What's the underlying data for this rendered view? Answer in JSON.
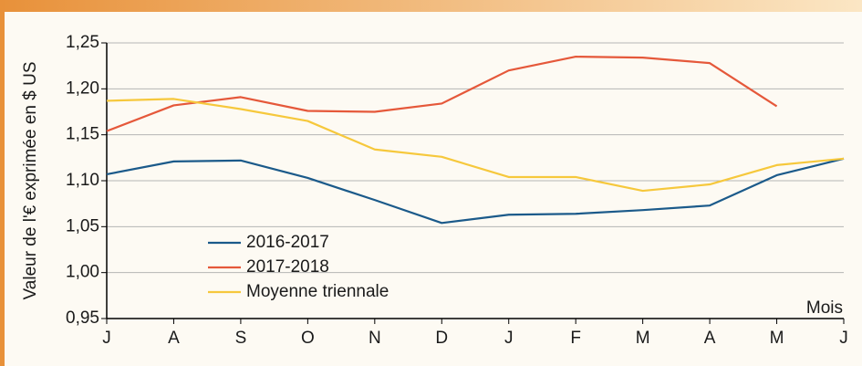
{
  "chart_data": {
    "type": "line",
    "y_label": "Valeur de l'€ exprimée en $ US",
    "x_label": "Mois",
    "categories": [
      "J",
      "A",
      "S",
      "O",
      "N",
      "D",
      "J",
      "F",
      "M",
      "A",
      "M",
      "J"
    ],
    "series": [
      {
        "name": "2016-2017",
        "color": "#1b5a8a",
        "values": [
          1.107,
          1.121,
          1.122,
          1.103,
          1.079,
          1.054,
          1.063,
          1.064,
          1.068,
          1.073,
          1.106,
          1.124
        ]
      },
      {
        "name": "2017-2018",
        "color": "#e5583a",
        "values": [
          1.154,
          1.182,
          1.191,
          1.176,
          1.175,
          1.184,
          1.22,
          1.235,
          1.234,
          1.228,
          1.181,
          null
        ]
      },
      {
        "name": "Moyenne triennale",
        "color": "#f6c83c",
        "values": [
          1.187,
          1.189,
          1.178,
          1.165,
          1.134,
          1.126,
          1.104,
          1.104,
          1.089,
          1.096,
          1.117,
          1.124
        ]
      }
    ],
    "ylim": [
      0.95,
      1.25
    ],
    "yticks": [
      {
        "value": 0.95,
        "label": "0,95"
      },
      {
        "value": 1.0,
        "label": "1,00"
      },
      {
        "value": 1.05,
        "label": "1,05"
      },
      {
        "value": 1.1,
        "label": "1,10"
      },
      {
        "value": 1.15,
        "label": "1,15"
      },
      {
        "value": 1.2,
        "label": "1,20"
      },
      {
        "value": 1.25,
        "label": "1,25"
      }
    ],
    "grid": true,
    "legend": "lower left"
  }
}
